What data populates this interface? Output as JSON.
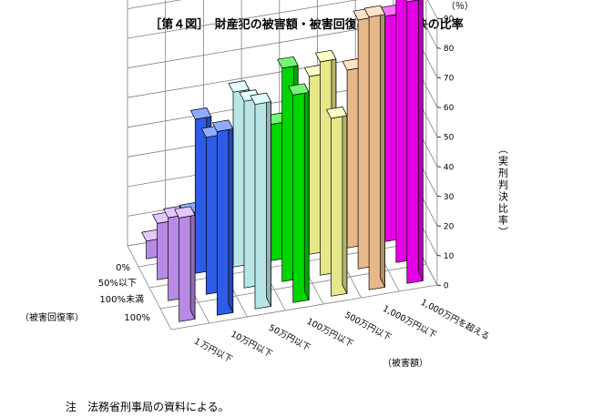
{
  "title": "［第４図］　財産犯の被害額・被害回復率と実刑判決の比率",
  "note": "注　法務省刑事局の資料による。",
  "chart_data": {
    "type": "bar-3d",
    "title": "［第４図］　財産犯の被害額・被害回復率と実刑判決の比率",
    "xlabel": "（被害額）",
    "ylabel": "（被害回復率）",
    "zlabel": "（実刑判決比率）",
    "unit_label": "（％）",
    "zlim": [
      0,
      90
    ],
    "zticks": [
      0,
      10,
      20,
      30,
      40,
      50,
      60,
      70,
      80,
      90
    ],
    "categories": [
      "１万円以下",
      "10万円以下",
      "50万円以下",
      "100万円以下",
      "500万円以下",
      "1,000万円以下",
      "1,000万円を超える"
    ],
    "recovery_levels": [
      "0%",
      "50%以下",
      "100%未満",
      "100%"
    ],
    "series": [
      {
        "name": "0%",
        "values": [
          35,
          62,
          69,
          70,
          60,
          92,
          95
        ]
      },
      {
        "name": "50%以下",
        "values": [
          28,
          53,
          63,
          72,
          72,
          84,
          90
        ]
      },
      {
        "name": "100%未満",
        "values": [
          19,
          52,
          59,
          46,
          60,
          60,
          76
        ]
      },
      {
        "name": "100%",
        "values": [
          6,
          13,
          19,
          22,
          24,
          26,
          33
        ]
      }
    ],
    "colors": [
      "#cc99ff",
      "#3366ff",
      "#ccffff",
      "#00ee00",
      "#ffff99",
      "#ffcc99",
      "#ff00ff"
    ]
  }
}
